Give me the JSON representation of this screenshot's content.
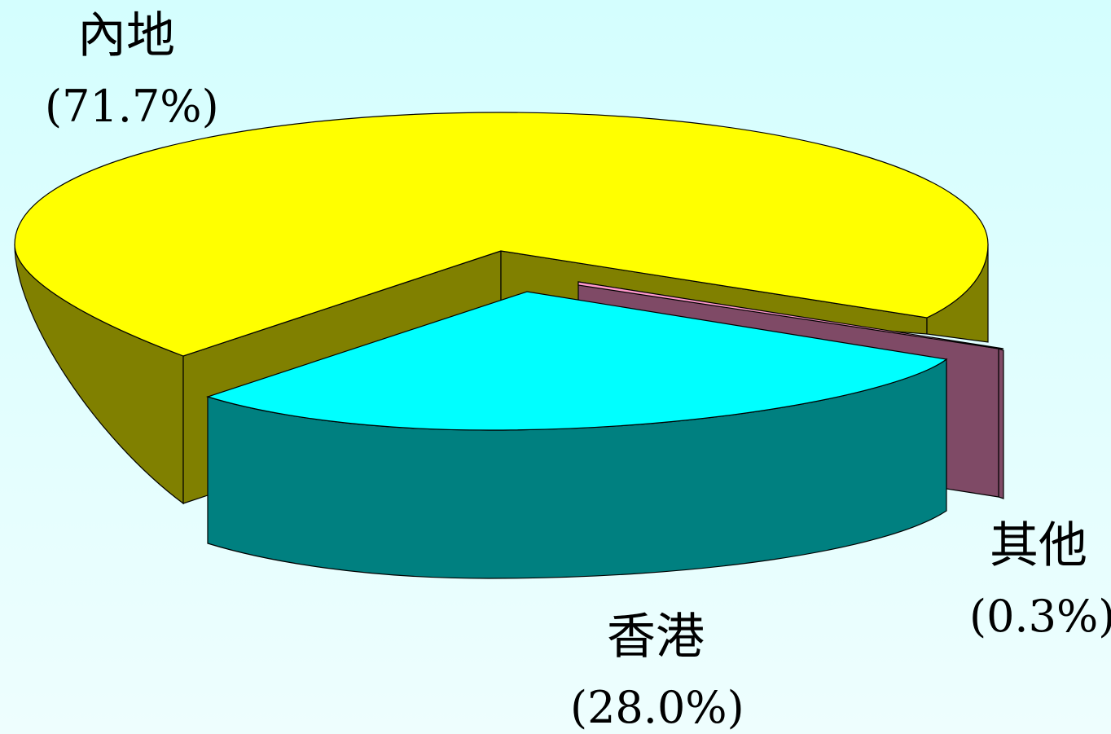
{
  "chart_data": {
    "type": "pie",
    "style": "3d-exploded",
    "slices": [
      {
        "label": "內地",
        "value": 71.7,
        "value_text": "(71.7%)",
        "top_color": "#ffff00",
        "side_color": "#808000"
      },
      {
        "label": "香港",
        "value": 28.0,
        "value_text": "(28.0%)",
        "top_color": "#00ffff",
        "side_color": "#008080"
      },
      {
        "label": "其他",
        "value": 0.3,
        "value_text": "(0.3%)",
        "top_color": "#ff99cc",
        "side_color": "#7f4a66"
      }
    ],
    "background_color": "#d4fefe"
  }
}
